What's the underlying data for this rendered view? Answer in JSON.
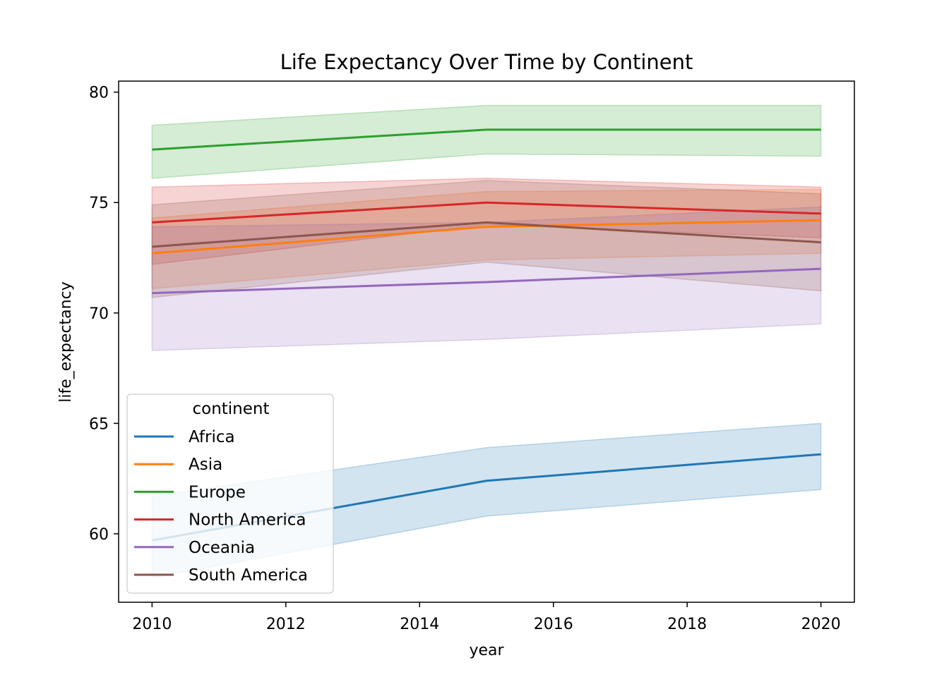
{
  "chart_data": {
    "type": "line",
    "title": "Life Expectancy Over Time by Continent",
    "xlabel": "year",
    "ylabel": "life_expectancy",
    "x": [
      2010,
      2015,
      2020
    ],
    "xlim": [
      2009.5,
      2020.5
    ],
    "ylim": [
      56.9,
      80.5
    ],
    "xticks": [
      2010,
      2012,
      2014,
      2016,
      2018,
      2020
    ],
    "yticks": [
      60,
      65,
      70,
      75,
      80
    ],
    "grid": false,
    "legend": {
      "title": "continent",
      "placement": "lower-left"
    },
    "series": [
      {
        "name": "Africa",
        "color": "#1f77b4",
        "values": [
          59.7,
          62.4,
          63.6
        ],
        "lower": [
          58.0,
          60.8,
          62.0
        ],
        "upper": [
          61.7,
          63.9,
          65.0
        ]
      },
      {
        "name": "Asia",
        "color": "#ff7f0e",
        "values": [
          72.7,
          73.9,
          74.2
        ],
        "lower": [
          71.1,
          72.4,
          72.7
        ],
        "upper": [
          74.3,
          75.5,
          75.6
        ]
      },
      {
        "name": "Europe",
        "color": "#2ca02c",
        "values": [
          77.4,
          78.3,
          78.3
        ],
        "lower": [
          76.1,
          77.2,
          77.1
        ],
        "upper": [
          78.5,
          79.4,
          79.4
        ]
      },
      {
        "name": "North America",
        "color": "#d62728",
        "values": [
          74.1,
          75.0,
          74.5
        ],
        "lower": [
          72.2,
          74.0,
          73.4
        ],
        "upper": [
          75.7,
          76.1,
          75.7
        ]
      },
      {
        "name": "Oceania",
        "color": "#9467bd",
        "values": [
          70.9,
          71.4,
          72.0
        ],
        "lower": [
          68.3,
          68.8,
          69.5
        ],
        "upper": [
          73.9,
          74.1,
          74.8
        ]
      },
      {
        "name": "South America",
        "color": "#8c564b",
        "values": [
          73.0,
          74.1,
          73.2
        ],
        "lower": [
          70.7,
          72.3,
          71.0
        ],
        "upper": [
          74.9,
          76.0,
          75.4
        ]
      }
    ]
  }
}
